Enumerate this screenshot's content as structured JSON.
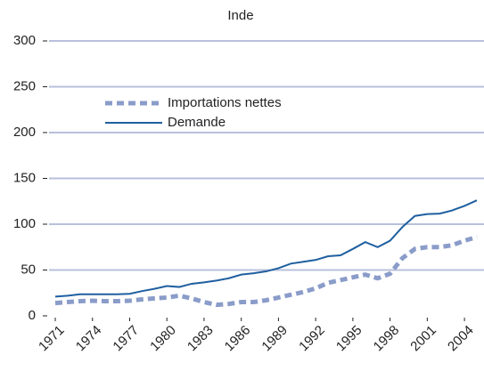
{
  "chart_data": {
    "type": "line",
    "title": "Inde",
    "x": [
      1971,
      1972,
      1973,
      1974,
      1975,
      1976,
      1977,
      1978,
      1979,
      1980,
      1981,
      1982,
      1983,
      1984,
      1985,
      1986,
      1987,
      1988,
      1989,
      1990,
      1991,
      1992,
      1993,
      1994,
      1995,
      1996,
      1997,
      1998,
      1999,
      2000,
      2001,
      2002,
      2003,
      2004,
      2005
    ],
    "series": [
      {
        "name": "Importations nettes",
        "color": "#8a9cc9",
        "dashed": true,
        "values": [
          14,
          15,
          16,
          16.5,
          16,
          16,
          16.5,
          18,
          19,
          20,
          22,
          19,
          15,
          12,
          13,
          15,
          15,
          17,
          20,
          23,
          26,
          30,
          36,
          39,
          42,
          45,
          41,
          46,
          63,
          73,
          75,
          75,
          77,
          82,
          86
        ]
      },
      {
        "name": "Demande",
        "color": "#1f5fa0",
        "dashed": false,
        "values": [
          21,
          22,
          23.5,
          23.5,
          23.5,
          23.5,
          24,
          27,
          29.5,
          32.5,
          31.5,
          35,
          36.5,
          38.5,
          41,
          45,
          46.5,
          48.5,
          52,
          57,
          59,
          61,
          65,
          66,
          73,
          80.5,
          75,
          82,
          97,
          109,
          111,
          111.5,
          115,
          120,
          126
        ]
      }
    ],
    "xlim": [
      1971,
      2005
    ],
    "xticks": [
      1971,
      1974,
      1977,
      1980,
      1983,
      1986,
      1989,
      1992,
      1995,
      1998,
      2001,
      2004
    ],
    "ylim": [
      0,
      300
    ],
    "yticks": [
      0,
      50,
      100,
      150,
      200,
      250,
      300
    ],
    "grid": true
  }
}
